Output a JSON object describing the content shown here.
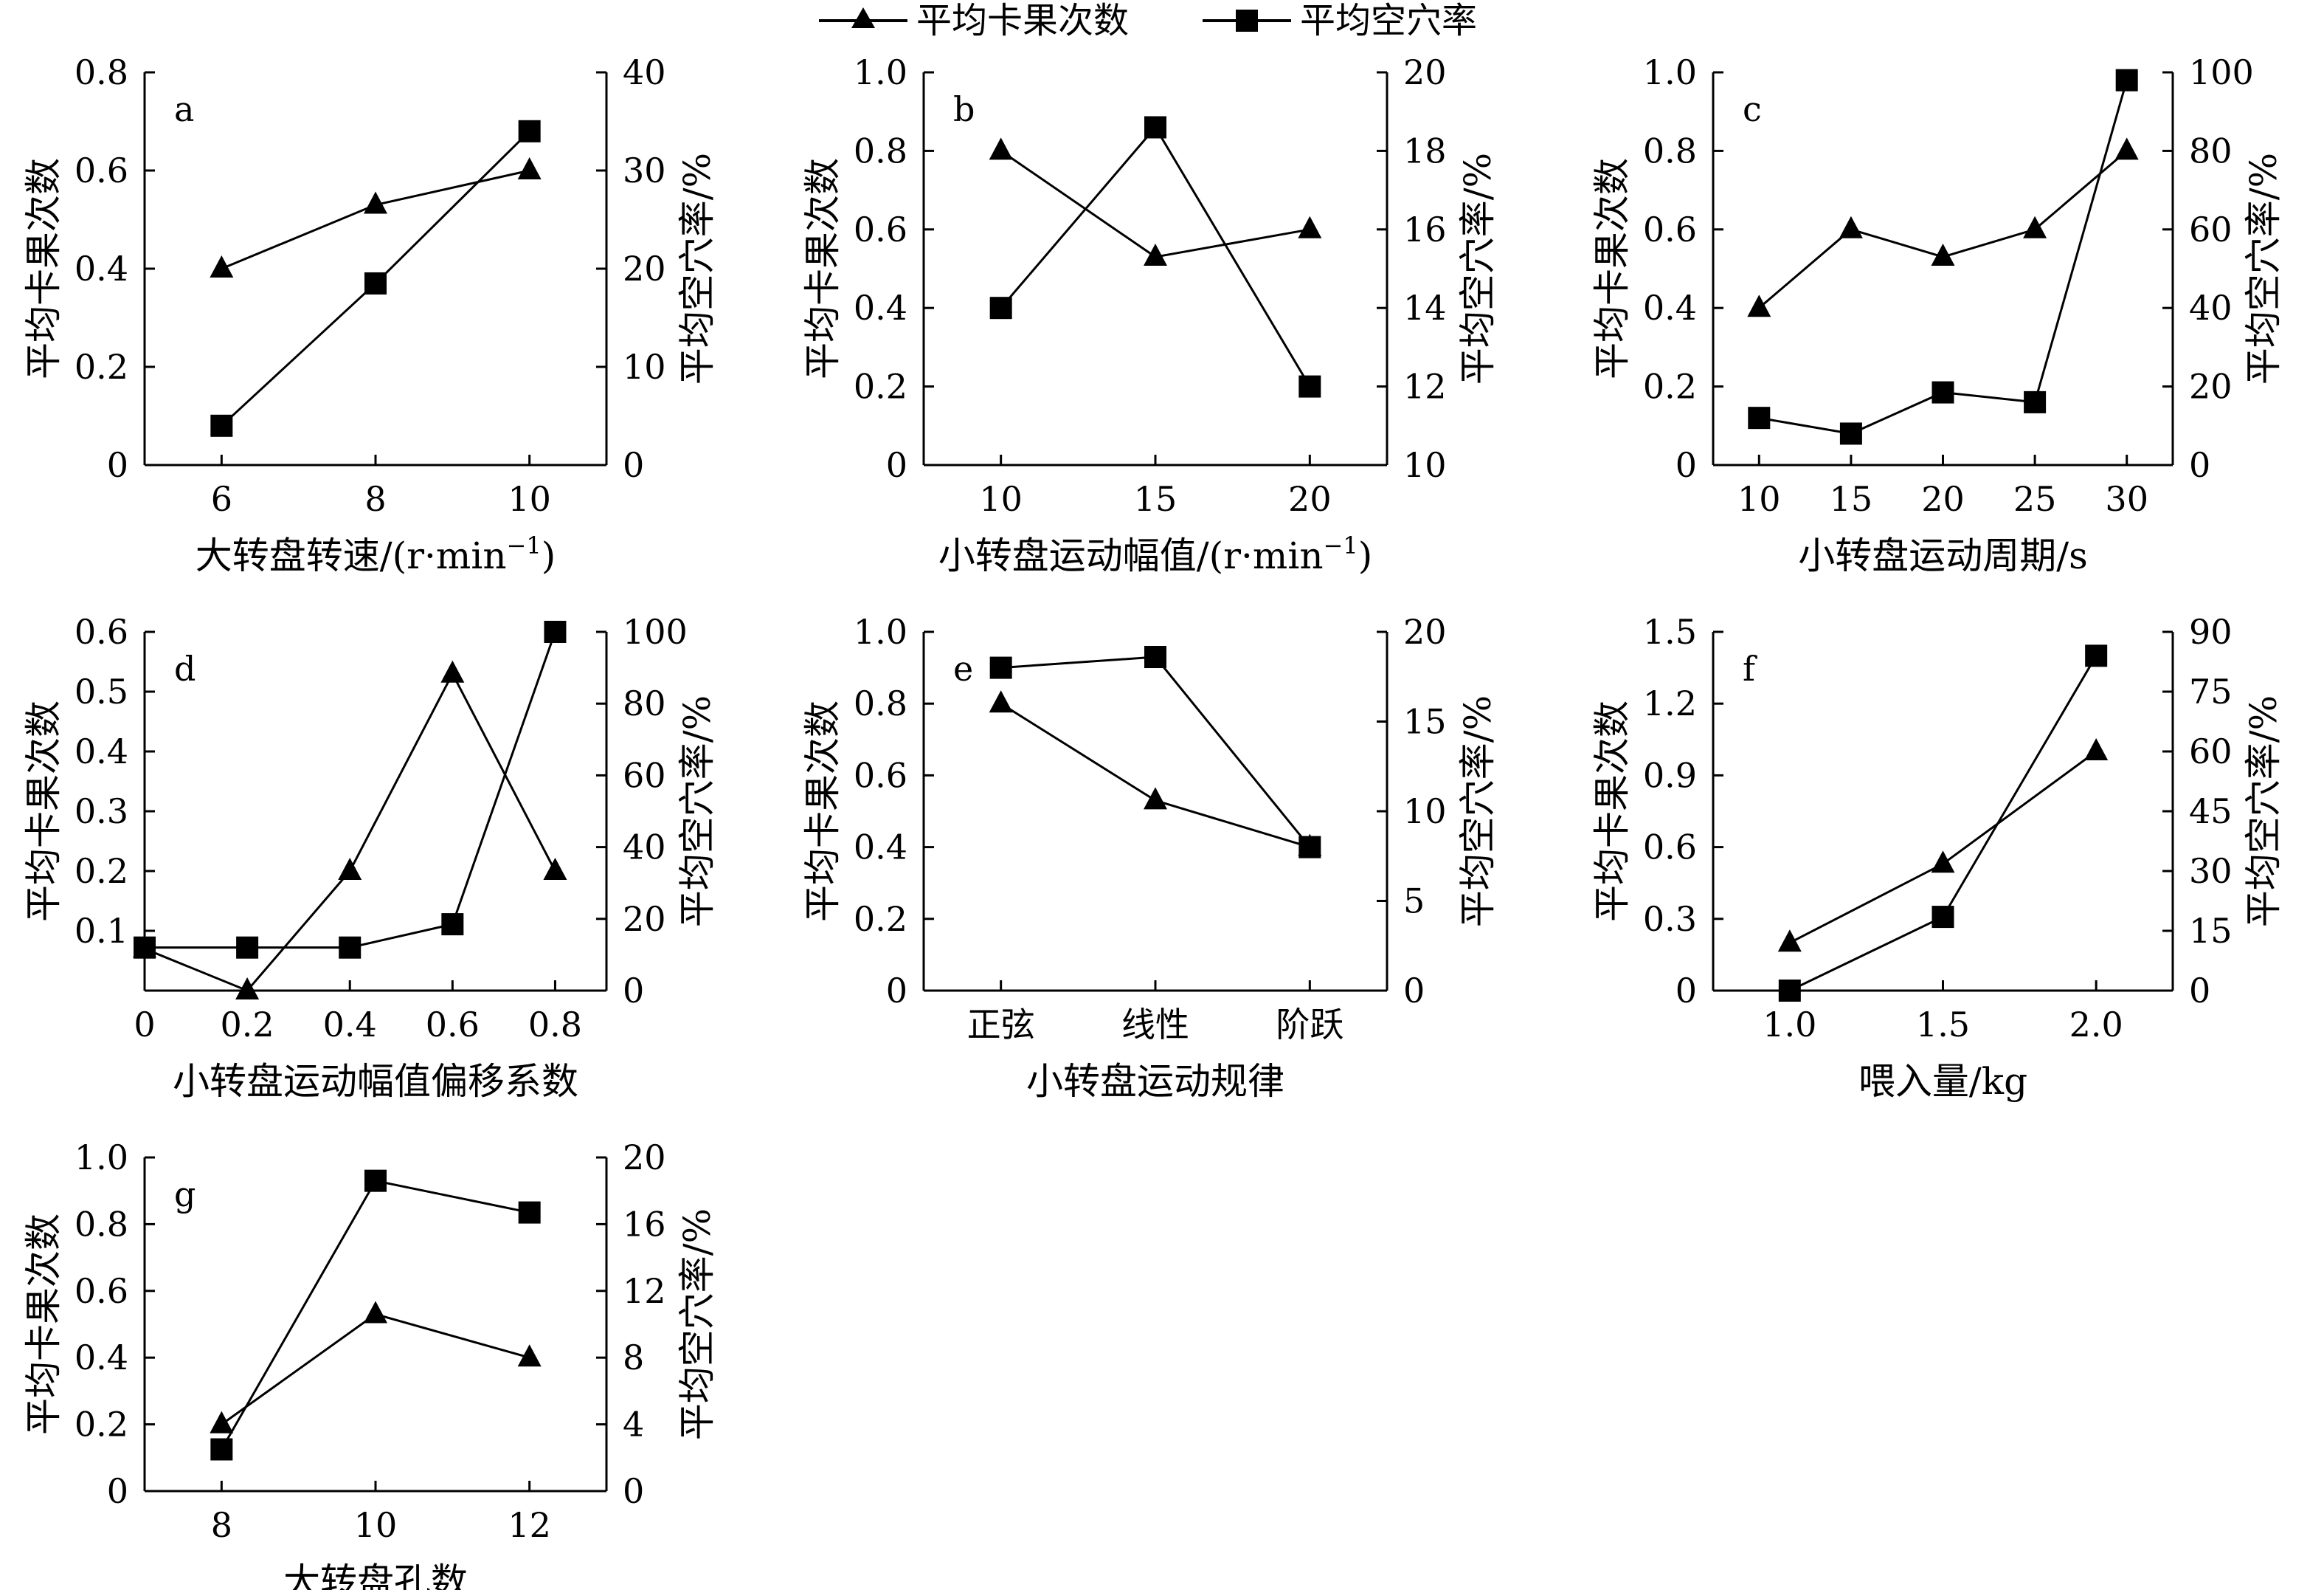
{
  "legend": {
    "tri_label": "平均卡果次数",
    "sq_label": "平均空穴率"
  },
  "colors": {
    "line": "#000000",
    "background": "#ffffff"
  },
  "chart_data": [
    {
      "id": "a",
      "type": "line",
      "panel_label": "a",
      "xlabel": "大转盘转速/(r·min",
      "xlabel_sup": "−1",
      "xlabel_tail": ")",
      "ylabel_left": "平均卡果次数",
      "ylabel_right": "平均空穴率/%",
      "xlim": [
        5,
        11
      ],
      "x_ticks": [
        6,
        8,
        10
      ],
      "x_tick_labels": [
        "6",
        "8",
        "10"
      ],
      "ylim_left": [
        0,
        0.8
      ],
      "yticks_left": [
        "0",
        "0.2",
        "0.4",
        "0.6",
        "0.8"
      ],
      "ylim_right": [
        0,
        40
      ],
      "yticks_right": [
        "0",
        "10",
        "20",
        "30",
        "40"
      ],
      "series": [
        {
          "name": "平均卡果次数",
          "axis": "left",
          "marker": "triangle",
          "x": [
            6,
            8,
            10
          ],
          "values": [
            0.4,
            0.53,
            0.6
          ]
        },
        {
          "name": "平均空穴率",
          "axis": "right",
          "marker": "square",
          "x": [
            6,
            8,
            10
          ],
          "values": [
            4,
            18.5,
            34
          ]
        }
      ]
    },
    {
      "id": "b",
      "type": "line",
      "panel_label": "b",
      "xlabel": "小转盘运动幅值/(r·min",
      "xlabel_sup": "−1",
      "xlabel_tail": ")",
      "ylabel_left": "平均卡果次数",
      "ylabel_right": "平均空穴率/%",
      "xlim": [
        7.5,
        22.5
      ],
      "x_ticks": [
        10,
        15,
        20
      ],
      "x_tick_labels": [
        "10",
        "15",
        "20"
      ],
      "ylim_left": [
        0,
        1.0
      ],
      "yticks_left": [
        "0",
        "0.2",
        "0.4",
        "0.6",
        "0.8",
        "1.0"
      ],
      "ylim_right": [
        10,
        20
      ],
      "yticks_right": [
        "10",
        "12",
        "14",
        "16",
        "18",
        "20"
      ],
      "series": [
        {
          "name": "平均卡果次数",
          "axis": "left",
          "marker": "triangle",
          "x": [
            10,
            15,
            20
          ],
          "values": [
            0.8,
            0.53,
            0.6
          ]
        },
        {
          "name": "平均空穴率",
          "axis": "right",
          "marker": "square",
          "x": [
            10,
            15,
            20
          ],
          "values": [
            14,
            18.6,
            12
          ]
        }
      ]
    },
    {
      "id": "c",
      "type": "line",
      "panel_label": "c",
      "xlabel": "小转盘运动周期/s",
      "xlabel_sup": "",
      "xlabel_tail": "",
      "ylabel_left": "平均卡果次数",
      "ylabel_right": "平均空穴率/%",
      "xlim": [
        7.5,
        32.5
      ],
      "x_ticks": [
        10,
        15,
        20,
        25,
        30
      ],
      "x_tick_labels": [
        "10",
        "15",
        "20",
        "25",
        "30"
      ],
      "ylim_left": [
        0,
        1.0
      ],
      "yticks_left": [
        "0",
        "0.2",
        "0.4",
        "0.6",
        "0.8",
        "1.0"
      ],
      "ylim_right": [
        0,
        100
      ],
      "yticks_right": [
        "0",
        "20",
        "40",
        "60",
        "80",
        "100"
      ],
      "series": [
        {
          "name": "平均卡果次数",
          "axis": "left",
          "marker": "triangle",
          "x": [
            10,
            15,
            20,
            25,
            30
          ],
          "values": [
            0.4,
            0.6,
            0.53,
            0.6,
            0.8
          ]
        },
        {
          "name": "平均空穴率",
          "axis": "right",
          "marker": "square",
          "x": [
            10,
            15,
            20,
            25,
            30
          ],
          "values": [
            12,
            8,
            18.5,
            16,
            98
          ]
        }
      ]
    },
    {
      "id": "d",
      "type": "line",
      "panel_label": "d",
      "xlabel": "小转盘运动幅值偏移系数",
      "xlabel_sup": "",
      "xlabel_tail": "",
      "ylabel_left": "平均卡果次数",
      "ylabel_right": "平均空穴率/%",
      "xlim": [
        0,
        0.9
      ],
      "x_ticks": [
        0,
        0.2,
        0.4,
        0.6,
        0.8
      ],
      "x_tick_labels": [
        "0",
        "0.2",
        "0.4",
        "0.6",
        "0.8"
      ],
      "ylim_left": [
        0,
        0.6
      ],
      "yticks_left": [
        "",
        "0.1",
        "0.2",
        "0.3",
        "0.4",
        "0.5",
        "0.6"
      ],
      "ylim_right": [
        0,
        100
      ],
      "yticks_right": [
        "0",
        "20",
        "40",
        "60",
        "80",
        "100"
      ],
      "series": [
        {
          "name": "平均卡果次数",
          "axis": "left",
          "marker": "triangle",
          "x": [
            0,
            0.2,
            0.4,
            0.6,
            0.8
          ],
          "values": [
            0.07,
            0.0,
            0.2,
            0.53,
            0.2
          ]
        },
        {
          "name": "平均空穴率",
          "axis": "right",
          "marker": "square",
          "x": [
            0,
            0.2,
            0.4,
            0.6,
            0.8
          ],
          "values": [
            12,
            12,
            12,
            18.5,
            100
          ]
        }
      ]
    },
    {
      "id": "e",
      "type": "line",
      "panel_label": "e",
      "xlabel": "小转盘运动规律",
      "xlabel_sup": "",
      "xlabel_tail": "",
      "ylabel_left": "平均卡果次数",
      "ylabel_right": "平均空穴率/%",
      "xlim": [
        0.5,
        3.5
      ],
      "x_ticks": [
        1,
        2,
        3
      ],
      "x_tick_labels": [
        "正弦",
        "线性",
        "阶跃"
      ],
      "ylim_left": [
        0,
        1.0
      ],
      "yticks_left": [
        "0",
        "0.2",
        "0.4",
        "0.6",
        "0.8",
        "1.0"
      ],
      "ylim_right": [
        0,
        20
      ],
      "yticks_right": [
        "0",
        "5",
        "10",
        "15",
        "20"
      ],
      "series": [
        {
          "name": "平均卡果次数",
          "axis": "left",
          "marker": "triangle",
          "x": [
            1,
            2,
            3
          ],
          "values": [
            0.8,
            0.53,
            0.4
          ]
        },
        {
          "name": "平均空穴率",
          "axis": "right",
          "marker": "square",
          "x": [
            1,
            2,
            3
          ],
          "values": [
            18,
            18.6,
            8
          ]
        }
      ]
    },
    {
      "id": "f",
      "type": "line",
      "panel_label": "f",
      "xlabel": "喂入量/kg",
      "xlabel_sup": "",
      "xlabel_tail": "",
      "ylabel_left": "平均卡果次数",
      "ylabel_right": "平均空穴率/%",
      "xlim": [
        0.75,
        2.25
      ],
      "x_ticks": [
        1.0,
        1.5,
        2.0
      ],
      "x_tick_labels": [
        "1.0",
        "1.5",
        "2.0"
      ],
      "ylim_left": [
        0,
        1.5
      ],
      "yticks_left": [
        "0",
        "0.3",
        "0.6",
        "0.9",
        "1.2",
        "1.5"
      ],
      "ylim_right": [
        0,
        90
      ],
      "yticks_right": [
        "0",
        "15",
        "30",
        "45",
        "60",
        "75",
        "90"
      ],
      "series": [
        {
          "name": "平均卡果次数",
          "axis": "left",
          "marker": "triangle",
          "x": [
            1.0,
            1.5,
            2.0
          ],
          "values": [
            0.2,
            0.53,
            1.0
          ]
        },
        {
          "name": "平均空穴率",
          "axis": "right",
          "marker": "square",
          "x": [
            1.0,
            1.5,
            2.0
          ],
          "values": [
            0,
            18.5,
            84
          ]
        }
      ]
    },
    {
      "id": "g",
      "type": "line",
      "panel_label": "g",
      "xlabel": "大转盘孔数",
      "xlabel_sup": "",
      "xlabel_tail": "",
      "ylabel_left": "平均卡果次数",
      "ylabel_right": "平均空穴率/%",
      "xlim": [
        7,
        13
      ],
      "x_ticks": [
        8,
        10,
        12
      ],
      "x_tick_labels": [
        "8",
        "10",
        "12"
      ],
      "ylim_left": [
        0,
        1.0
      ],
      "yticks_left": [
        "0",
        "0.2",
        "0.4",
        "0.6",
        "0.8",
        "1.0"
      ],
      "ylim_right": [
        0,
        20
      ],
      "yticks_right": [
        "0",
        "4",
        "8",
        "12",
        "16",
        "20"
      ],
      "series": [
        {
          "name": "平均卡果次数",
          "axis": "left",
          "marker": "triangle",
          "x": [
            8,
            10,
            12
          ],
          "values": [
            0.2,
            0.53,
            0.4
          ]
        },
        {
          "name": "平均空穴率",
          "axis": "right",
          "marker": "square",
          "x": [
            8,
            10,
            12
          ],
          "values": [
            2.5,
            18.6,
            16.7
          ]
        }
      ]
    }
  ]
}
